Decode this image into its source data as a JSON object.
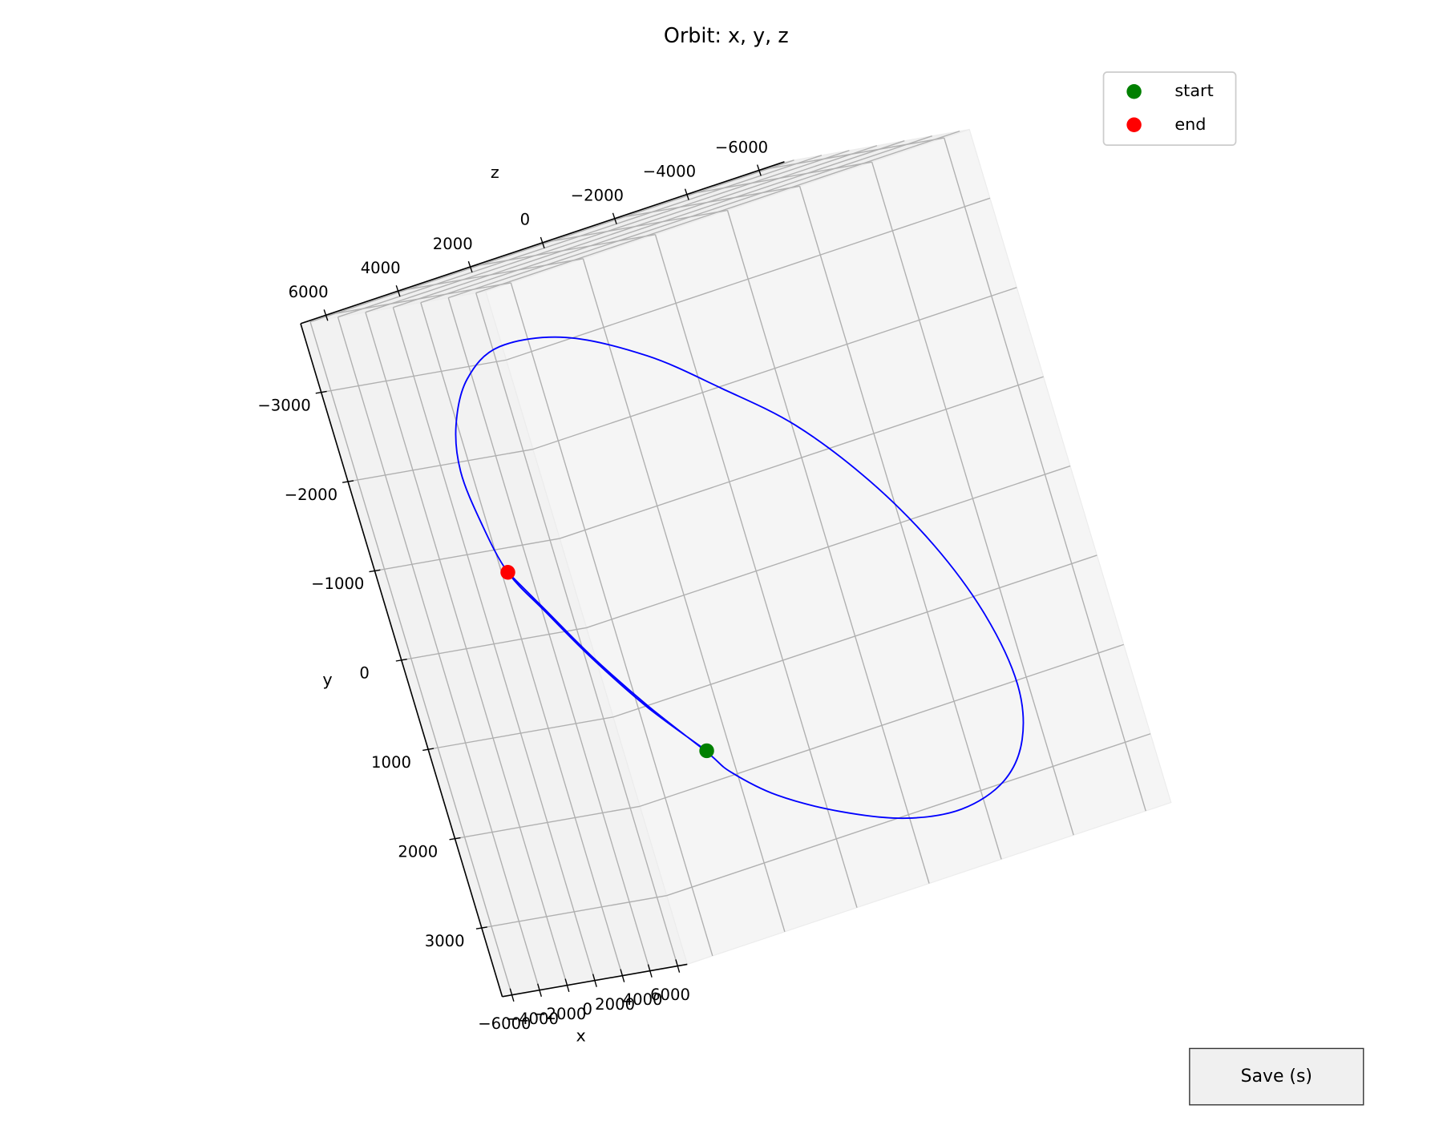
{
  "chart_data": {
    "type": "line3d",
    "title": "Orbit: x, y, z",
    "xlabel": "x",
    "ylabel": "y",
    "zlabel": "z",
    "xlim": [
      -6700,
      6700
    ],
    "ylim": [
      -3770,
      3770
    ],
    "zlim": [
      -6700,
      6700
    ],
    "xticks": [
      {
        "value": -6000,
        "label": "−6000"
      },
      {
        "value": -4000,
        "label": "−4000"
      },
      {
        "value": -2000,
        "label": "−2000"
      },
      0,
      2000,
      4000,
      6000
    ],
    "yticks": [
      {
        "value": -3000,
        "label": "−3000"
      },
      {
        "value": -2000,
        "label": "−2000"
      },
      {
        "value": -1000,
        "label": "−1000"
      },
      0,
      1000,
      2000,
      3000
    ],
    "zticks": [
      {
        "value": -6000,
        "label": "−6000"
      },
      {
        "value": -4000,
        "label": "−4000"
      },
      {
        "value": -2000,
        "label": "−2000"
      },
      0,
      2000,
      4000,
      6000
    ],
    "grid": true,
    "legend": "upper right",
    "series": [
      {
        "color": "#0000ff",
        "x": [
          0,
          0,
          0,
          0,
          0,
          0,
          0,
          0,
          0,
          0,
          0,
          0,
          0,
          0,
          0,
          0,
          0,
          0,
          0,
          0,
          0,
          0,
          0,
          0,
          0,
          0,
          0,
          0,
          0,
          0
        ],
        "y": [
          1812,
          1168,
          480,
          -148,
          -682,
          -1282,
          -1869,
          -2356,
          -2788,
          -3008,
          -2875,
          -2410,
          -1828,
          -1200,
          -383,
          497,
          1376,
          2192,
          2773,
          3134,
          3274,
          3179,
          2893,
          2503,
          2110,
          1830,
          1149,
          461,
          -167,
          -682
        ],
        "z": [
          2149,
          3312,
          4340,
          5155,
          5810,
          6109,
          6238,
          6005,
          5377,
          4318,
          2572,
          662,
          -957,
          -2541,
          -3985,
          -5127,
          -5885,
          -6177,
          -5876,
          -5096,
          -3839,
          -2372,
          -791,
          714,
          1704,
          2150,
          3298,
          4326,
          5141,
          5810
        ]
      }
    ],
    "points": [
      {
        "name": "start",
        "color": "#008000",
        "x": 0,
        "y": 1812,
        "z": 2149
      },
      {
        "name": "end",
        "color": "#ff0000",
        "x": 0,
        "y": -682,
        "z": 5810
      }
    ]
  },
  "ui": {
    "save_button": "Save (s)"
  }
}
